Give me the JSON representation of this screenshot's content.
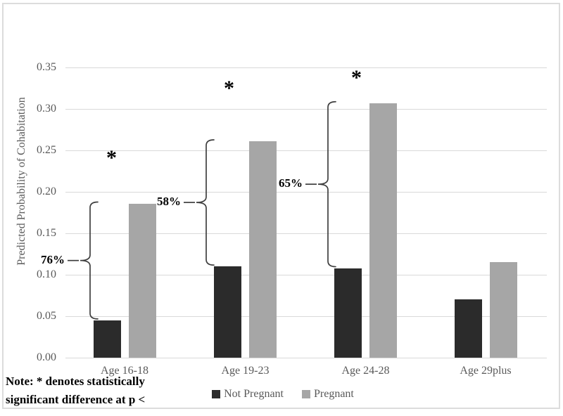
{
  "frame": {
    "background": "#ffffff",
    "border_color": "#dcdcdc"
  },
  "chart_data": {
    "type": "bar",
    "title": "",
    "xlabel": "",
    "ylabel": "Predicted Probability of Cohabitation",
    "categories": [
      "Age 16-18",
      "Age 19-23",
      "Age 24-28",
      "Age 29plus"
    ],
    "series": [
      {
        "name": "Not Pregnant",
        "color": "#2b2b2b",
        "values": [
          0.045,
          0.11,
          0.108,
          0.07
        ]
      },
      {
        "name": "Pregnant",
        "color": "#a6a6a6",
        "values": [
          0.186,
          0.261,
          0.307,
          0.115
        ]
      }
    ],
    "ylim": [
      0,
      0.35
    ],
    "ytick_labels": [
      "0.00",
      "0.05",
      "0.10",
      "0.15",
      "0.20",
      "0.25",
      "0.30",
      "0.35"
    ],
    "grid": true,
    "gridline_color": "#d9d9d9",
    "axis_text_color": "#595959",
    "legend_position": "bottom",
    "annotations": {
      "significance_marker": "*",
      "groups": [
        {
          "category": "Age 16-18",
          "diff_label": "76%",
          "significant": true
        },
        {
          "category": "Age 19-23",
          "diff_label": "58%",
          "significant": true
        },
        {
          "category": "Age 24-28",
          "diff_label": "65%",
          "significant": true
        },
        {
          "category": "Age 29plus",
          "diff_label": "",
          "significant": false
        }
      ]
    }
  },
  "note": {
    "lines": [
      "Note: * denotes statistically",
      "significant difference at p <"
    ]
  }
}
